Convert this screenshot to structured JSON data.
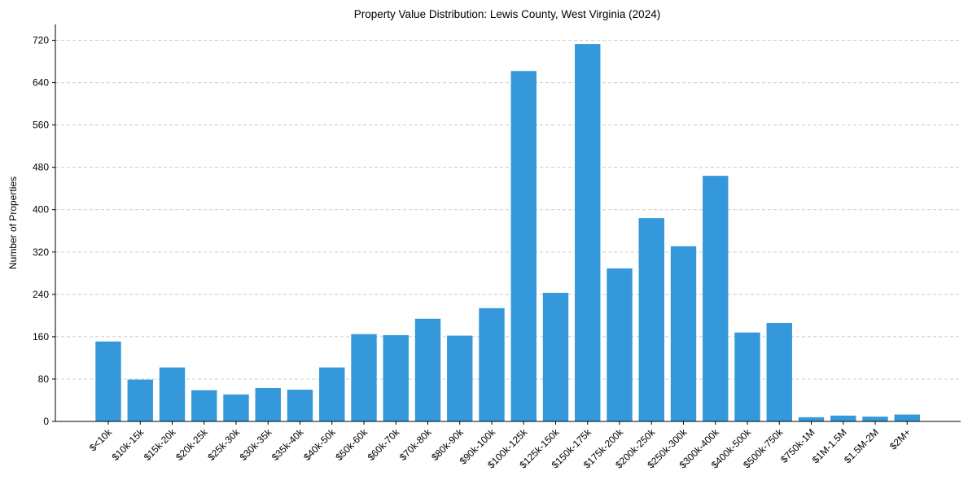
{
  "chart_data": {
    "type": "bar",
    "title": "Property Value Distribution: Lewis County, West Virginia (2024)",
    "xlabel": "",
    "ylabel": "Number of Properties",
    "ylim": [
      0,
      750
    ],
    "yticks": [
      0,
      80,
      160,
      240,
      320,
      400,
      480,
      560,
      640,
      720
    ],
    "grid": "y-dashed",
    "bar_color": "#3498db",
    "categories": [
      "$<10k",
      "$10k-15k",
      "$15k-20k",
      "$20k-25k",
      "$25k-30k",
      "$30k-35k",
      "$35k-40k",
      "$40k-50k",
      "$50k-60k",
      "$60k-70k",
      "$70k-80k",
      "$80k-90k",
      "$90k-100k",
      "$100k-125k",
      "$125k-150k",
      "$150k-175k",
      "$175k-200k",
      "$200k-250k",
      "$250k-300k",
      "$300k-400k",
      "$400k-500k",
      "$500k-750k",
      "$750k-1M",
      "$1M-1.5M",
      "$1.5M-2M",
      "$2M+"
    ],
    "values": [
      151,
      79,
      102,
      59,
      51,
      63,
      60,
      102,
      165,
      163,
      194,
      162,
      214,
      662,
      243,
      713,
      289,
      384,
      331,
      464,
      168,
      186,
      8,
      11,
      9,
      13
    ]
  }
}
